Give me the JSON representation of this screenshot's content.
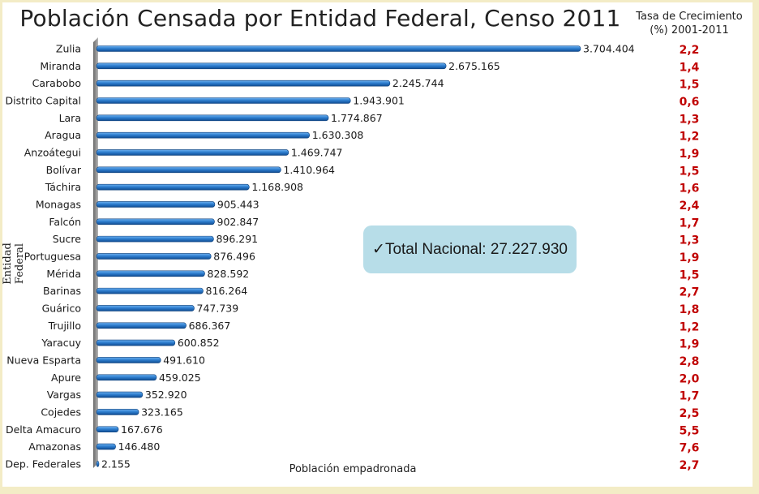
{
  "title": "Población Censada por Entidad Federal, Censo 2011",
  "growth_header": {
    "line1": "Tasa de Crecimiento",
    "line2": "(%) 2001-2011"
  },
  "total_box": {
    "check": "✓",
    "text": "Total Nacional: 27.227.930"
  },
  "colors": {
    "bar": "#1a5fa8",
    "bar_light": "#5aa2e6",
    "rate": "#c00000",
    "total_box": "#b7dde8"
  },
  "chart_data": {
    "type": "bar",
    "orientation": "horizontal",
    "title": "Población Censada por Entidad Federal, Censo 2011",
    "xlabel": "Población empadronada",
    "ylabel": "Entidad Federal",
    "xlim": [
      0,
      4500000
    ],
    "grid": false,
    "categories": [
      "Zulia",
      "Miranda",
      "Carabobo",
      "Distrito Capital",
      "Lara",
      "Aragua",
      "Anzoátegui",
      "Bolívar",
      "Táchira",
      "Monagas",
      "Falcón",
      "Sucre",
      "Portuguesa",
      "Mérida",
      "Barinas",
      "Guárico",
      "Trujillo",
      "Yaracuy",
      "Nueva Esparta",
      "Apure",
      "Vargas",
      "Cojedes",
      "Delta Amacuro",
      "Amazonas",
      "Dep. Federales"
    ],
    "values": [
      3704404,
      2675165,
      2245744,
      1943901,
      1774867,
      1630308,
      1469747,
      1410964,
      1168908,
      905443,
      902847,
      896291,
      876496,
      828592,
      816264,
      747739,
      686367,
      600852,
      491610,
      459025,
      352920,
      323165,
      167676,
      146480,
      2155
    ],
    "value_labels": [
      "3.704.404",
      "2.675.165",
      "2.245.744",
      "1.943.901",
      "1.774.867",
      "1.630.308",
      "1.469.747",
      "1.410.964",
      "1.168.908",
      "905.443",
      "902.847",
      "896.291",
      "876.496",
      "828.592",
      "816.264",
      "747.739",
      "686.367",
      "600.852",
      "491.610",
      "459.025",
      "352.920",
      "323.165",
      "167.676",
      "146.480",
      "2.155"
    ],
    "growth_rates": [
      "2,2",
      "1,4",
      "1,5",
      "0,6",
      "1,3",
      "1,2",
      "1,9",
      "1,5",
      "1,6",
      "2,4",
      "1,7",
      "1,3",
      "1,9",
      "1,5",
      "2,7",
      "1,8",
      "1,2",
      "1,9",
      "2,8",
      "2,0",
      "1,7",
      "2,5",
      "5,5",
      "7,6",
      "2,7"
    ]
  }
}
